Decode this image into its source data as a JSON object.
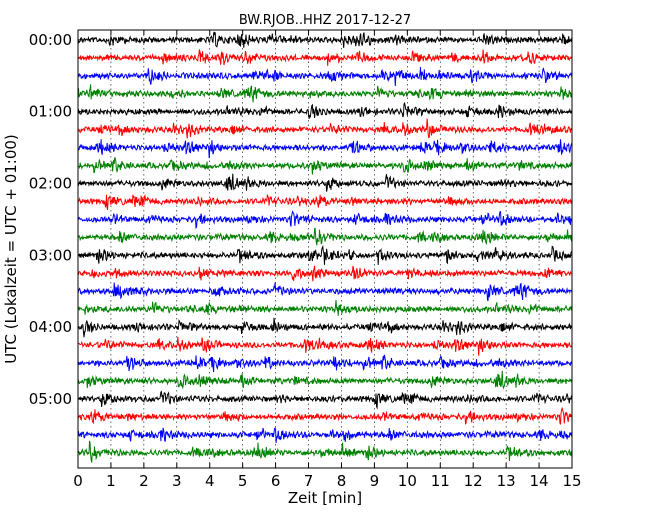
{
  "chart_data": {
    "type": "line",
    "title": "BW.RJOB..HHZ 2017-12-27",
    "xlabel": "Zeit  [min]",
    "ylabel": "UTC (Lokalzeit = UTC + 01:00)",
    "xlim": [
      0,
      15
    ],
    "x_ticks": [
      0,
      1,
      2,
      3,
      4,
      5,
      6,
      7,
      8,
      9,
      10,
      11,
      12,
      13,
      14,
      15
    ],
    "x_tick_labels": [
      "0",
      "1",
      "2",
      "3",
      "4",
      "5",
      "6",
      "7",
      "8",
      "9",
      "10",
      "11",
      "12",
      "13",
      "14",
      "15"
    ],
    "y_tick_labels": [
      "00:00",
      "01:00",
      "02:00",
      "03:00",
      "04:00",
      "05:00"
    ],
    "y_tick_rows": [
      0,
      4,
      8,
      12,
      16,
      20
    ],
    "grid": "vertical-dotted",
    "series_colors": [
      "#000000",
      "#ff0000",
      "#0000ff",
      "#008000"
    ],
    "trace_count": 24,
    "trace_interval_min": 15
  }
}
